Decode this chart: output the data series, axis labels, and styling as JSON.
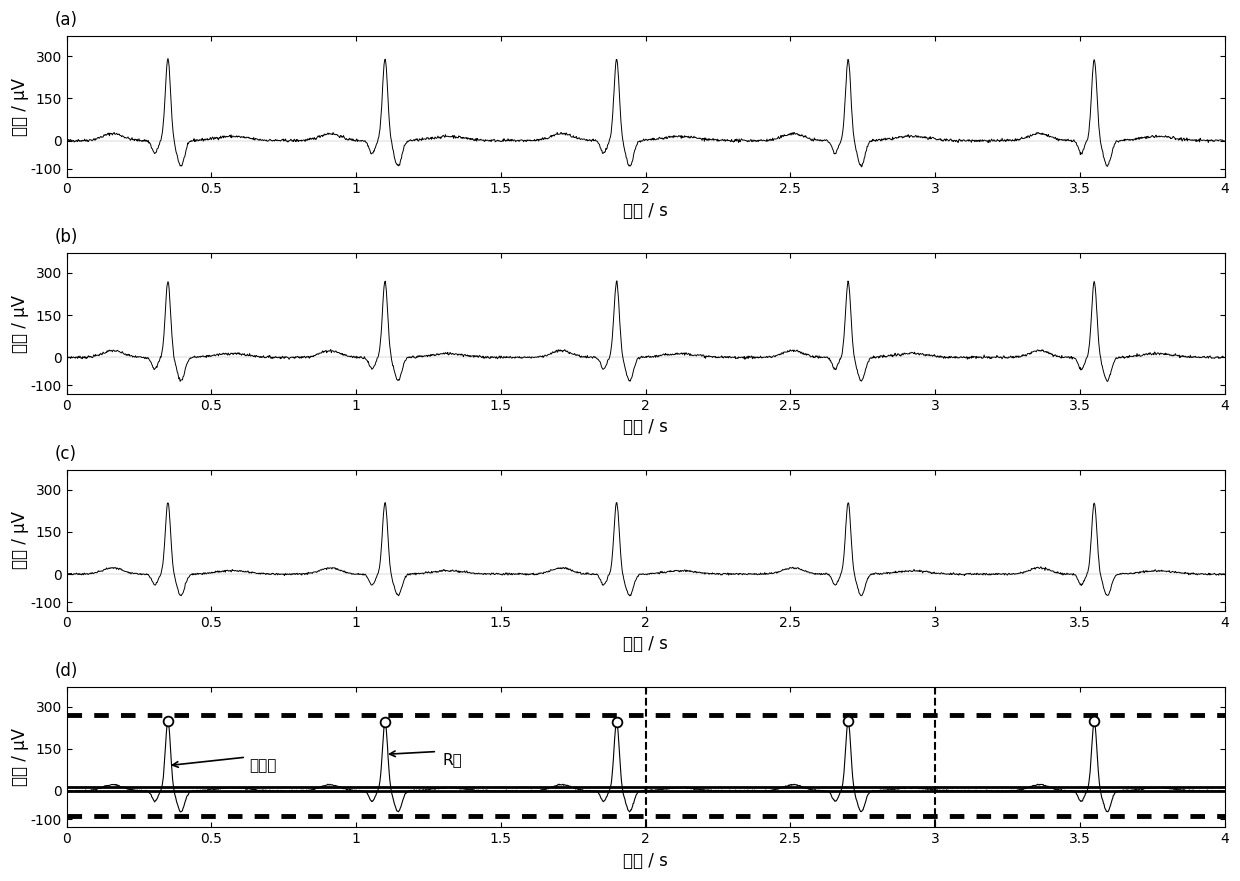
{
  "subplot_labels": [
    "(a)",
    "(b)",
    "(c)",
    "(d)"
  ],
  "xlabel": "时间 / s",
  "ylabel": "幅值 / μV",
  "xlim": [
    0,
    4
  ],
  "ylim": [
    -130,
    370
  ],
  "yticks": [
    -100,
    0,
    150,
    300
  ],
  "xticks": [
    0,
    0.5,
    1,
    1.5,
    2,
    2.5,
    3,
    3.5,
    4
  ],
  "r_peaks": [
    0.35,
    1.1,
    1.9,
    2.7,
    3.55
  ],
  "r_peak_height": 290,
  "s_depth": -90,
  "q_depth": -45,
  "p_height": 25,
  "t_height": 15,
  "noise_amp": 2.5,
  "baseline": 0,
  "dashed_upper": 270,
  "dashed_lower": -90,
  "solid_line": 0,
  "window_boundaries": [
    2.0,
    3.0
  ],
  "background_color": "#ffffff",
  "line_color": "#000000",
  "fontsize_label": 12,
  "fontsize_tick": 10,
  "fontsize_sublabel": 12,
  "fontsize_annot": 11
}
